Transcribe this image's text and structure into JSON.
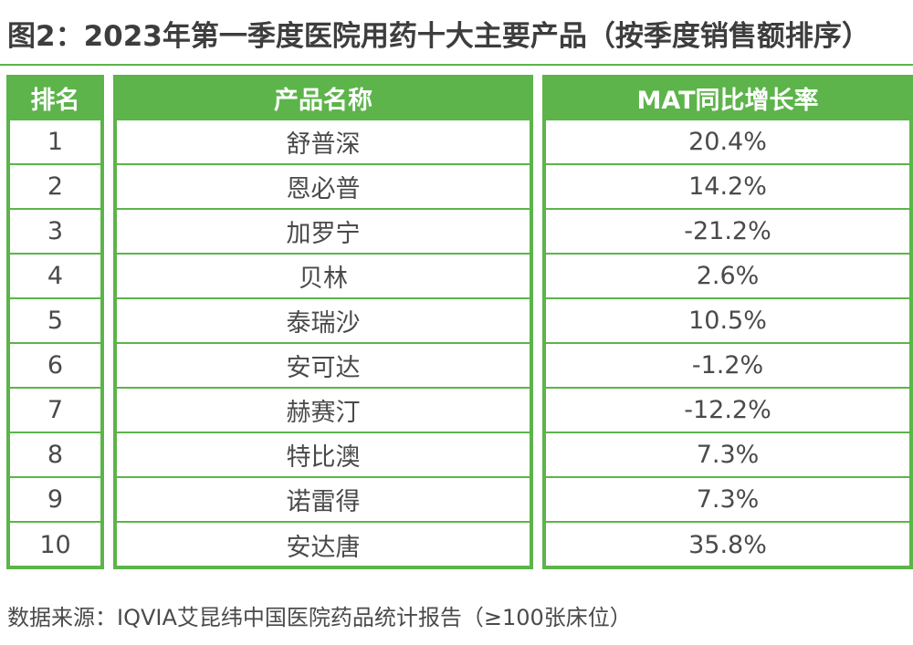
{
  "title": "图2：2023年第一季度医院用药十大主要产品（按季度销售额排序）",
  "source": "数据来源：IQVIA艾昆纬中国医院药品统计报告（≥100张床位）",
  "chart_data": {
    "type": "table",
    "columns": [
      "排名",
      "产品名称",
      "MAT同比增长率"
    ],
    "rows": [
      [
        "1",
        "舒普深",
        "20.4%"
      ],
      [
        "2",
        "恩必普",
        "14.2%"
      ],
      [
        "3",
        "加罗宁",
        "-21.2%"
      ],
      [
        "4",
        "贝林",
        "2.6%"
      ],
      [
        "5",
        "泰瑞沙",
        "10.5%"
      ],
      [
        "6",
        "安可达",
        "-1.2%"
      ],
      [
        "7",
        "赫赛汀",
        "-12.2%"
      ],
      [
        "8",
        "特比澳",
        "7.3%"
      ],
      [
        "9",
        "诺雷得",
        "7.3%"
      ],
      [
        "10",
        "安达唐",
        "35.8%"
      ]
    ]
  },
  "colors": {
    "accent": "#5cb44a",
    "text": "#4a4a4a",
    "title": "#3d3d3d"
  }
}
